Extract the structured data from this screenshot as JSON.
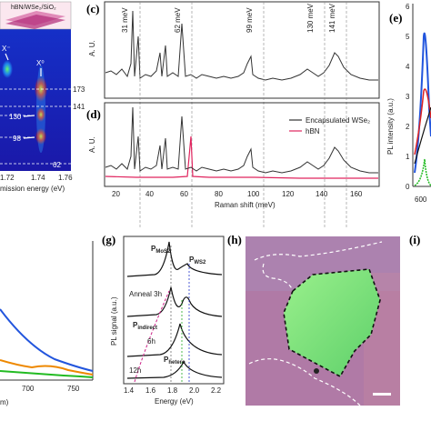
{
  "panel_a": {
    "stack_label": "hBN/WSe₂/SiO₂",
    "exciton_minus": "X⁻",
    "exciton_zero": "X⁰",
    "right_ticks": [
      "173",
      "141"
    ],
    "inner_labels": [
      "130",
      "98",
      "62"
    ],
    "xticks": [
      "1.72",
      "1.74",
      "1.76"
    ],
    "xlabel": "mission energy (eV)"
  },
  "panel_c": {
    "letter": "(c)",
    "yunit": "A. U.",
    "peak_labels": [
      "31 meV",
      "62 meV",
      "99 meV",
      "130 meV",
      "141 meV"
    ]
  },
  "panel_d": {
    "letter": "(d)",
    "yunit": "A. U.",
    "legend": [
      "Encapsulated WSe₂",
      "hBN"
    ],
    "xticks": [
      "20",
      "40",
      "60",
      "80",
      "100",
      "120",
      "140",
      "160"
    ],
    "xlabel": "Raman shift (meV)"
  },
  "panel_e": {
    "letter": "(e)",
    "ylabel": "PL intensity (a.u.)",
    "yticks": [
      "0",
      "1",
      "2",
      "3",
      "4",
      "5",
      "6"
    ],
    "xticks": [
      "600",
      "600"
    ]
  },
  "panel_f": {
    "xticks": [
      "700",
      "750"
    ],
    "xlabel_fragment": "m)"
  },
  "panel_g": {
    "letter": "(g)",
    "ylabel": "PL signal (a.u.)",
    "labels": {
      "pmos2": "P",
      "pmos2_sub": "MoS2",
      "pws2": "P",
      "pws2_sub": "WS2",
      "anneal": "Anneal 3h",
      "pindirect": "P",
      "pindirect_sub": "indirect",
      "six_h": "6h",
      "phetero": "P",
      "phetero_sub": "hetero",
      "twelve_h": "12h"
    },
    "xticks": [
      "1.4",
      "1.6",
      "1.8",
      "2.0",
      "2.2"
    ],
    "xlabel": "Energy (eV)"
  },
  "panel_h": {
    "letter": "(h)"
  },
  "panel_i": {
    "letter": "(i)"
  },
  "colors": {
    "map_background": "#1a1fbf",
    "hbn_red": "#e0245e",
    "curve_blue": "#2255dd",
    "curve_green": "#22bb22",
    "curve_orange": "#ee8800",
    "curve_red": "#dd2222",
    "g_magenta": "#cc2288",
    "g_green": "#22aa22",
    "g_blue": "#2233cc",
    "flake_green": "#7ee07a",
    "substrate": "#b07aa6"
  }
}
